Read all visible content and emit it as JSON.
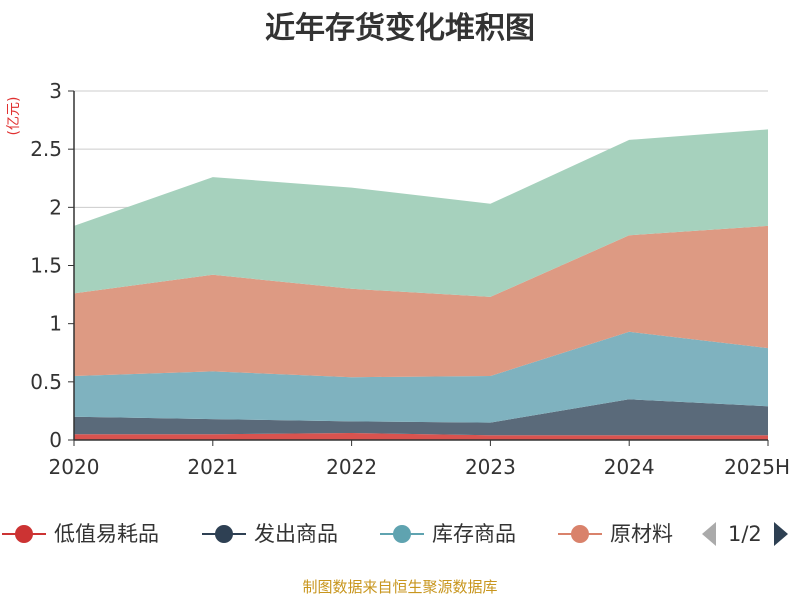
{
  "chart_data": {
    "type": "area",
    "stacked": true,
    "title": "近年存货变化堆积图",
    "ylabel": "(亿元)",
    "categories": [
      "2020",
      "2021",
      "2022",
      "2023",
      "2024",
      "2025H"
    ],
    "ylim": [
      0,
      3
    ],
    "yticks": [
      "0",
      "0.5",
      "1",
      "1.5",
      "2",
      "2.5",
      "3"
    ],
    "grid": true,
    "series": [
      {
        "name": "低值易耗品",
        "color": "#d9534f",
        "values": [
          0.05,
          0.05,
          0.06,
          0.04,
          0.04,
          0.04
        ]
      },
      {
        "name": "发出商品",
        "color": "#5a6a7a",
        "values": [
          0.15,
          0.13,
          0.1,
          0.11,
          0.31,
          0.25
        ]
      },
      {
        "name": "库存商品",
        "color": "#7fb2bf",
        "values": [
          0.35,
          0.41,
          0.38,
          0.4,
          0.58,
          0.5
        ]
      },
      {
        "name": "原材料",
        "color": "#dd9a83",
        "values": [
          0.71,
          0.83,
          0.76,
          0.68,
          0.83,
          1.05
        ]
      },
      {
        "name": "",
        "color": "#a6d1bd",
        "values": [
          0.58,
          0.84,
          0.87,
          0.8,
          0.82,
          0.83
        ]
      }
    ]
  },
  "legend": {
    "items": [
      {
        "label": "低值易耗品",
        "color": "#cc3333"
      },
      {
        "label": "发出商品",
        "color": "#2e4053"
      },
      {
        "label": "库存商品",
        "color": "#5fa3b0"
      },
      {
        "label": "原材料",
        "color": "#d9826b"
      }
    ],
    "page": "1/2",
    "prev_icon": "triangle-left-icon",
    "next_icon": "triangle-right-icon"
  },
  "source": "制图数据来自恒生聚源数据库"
}
